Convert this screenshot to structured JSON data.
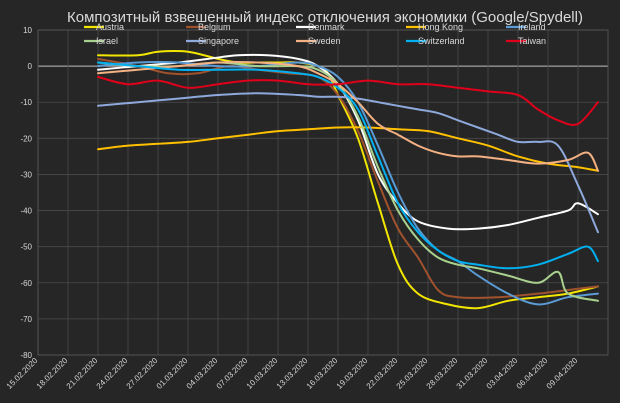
{
  "chart_data": {
    "type": "line",
    "title": "Композитный взвешенный индекс отключения экономики (Google/Spydell)",
    "xlabel": "",
    "ylabel": "",
    "ylim": [
      -80,
      10
    ],
    "yticks": [
      10,
      0,
      -10,
      -20,
      -30,
      -40,
      -50,
      -60,
      -70,
      -80
    ],
    "x_tick_labels": [
      "15.02.2020",
      "18.02.2020",
      "21.02.2020",
      "24.02.2020",
      "27.02.2020",
      "01.03.2020",
      "04.03.2020",
      "07.03.2020",
      "10.03.2020",
      "13.03.2020",
      "16.03.2020",
      "19.03.2020",
      "22.03.2020",
      "25.03.2020",
      "28.03.2020",
      "31.03.2020",
      "03.04.2020",
      "06.04.2020",
      "09.04.2020"
    ],
    "x_range_days": [
      0,
      57
    ],
    "x_units": "days after 15.02.2020",
    "grid": true,
    "legend_position": "top",
    "series": [
      {
        "name": "Austria",
        "color": "#f2e600",
        "x": [
          6,
          10,
          12,
          15,
          18,
          20,
          22,
          24,
          26,
          28,
          29,
          30,
          32,
          34,
          36,
          38,
          41,
          44,
          47,
          50,
          53,
          56
        ],
        "values": [
          3,
          3,
          4,
          4,
          2,
          1,
          1,
          1,
          1,
          0,
          -2,
          -8,
          -20,
          -38,
          -55,
          -63,
          -66,
          -67,
          -65,
          -64,
          -63,
          -61
        ]
      },
      {
        "name": "Belgium",
        "color": "#a0522d",
        "x": [
          6,
          10,
          13,
          16,
          19,
          22,
          25,
          28,
          30,
          32,
          34,
          36,
          38,
          40,
          42,
          46,
          50,
          53,
          56
        ],
        "values": [
          2,
          0,
          -2,
          -2,
          0,
          -1,
          -2,
          -3,
          -8,
          -18,
          -32,
          -45,
          -53,
          -62,
          -64,
          -64,
          -63,
          -62,
          -61
        ]
      },
      {
        "name": "Denmark",
        "color": "#ffffff",
        "x": [
          6,
          10,
          14,
          17,
          20,
          23,
          26,
          28,
          30,
          32,
          34,
          36,
          38,
          41,
          44,
          47,
          50,
          53,
          54,
          56
        ],
        "values": [
          -1,
          0,
          1,
          2,
          3,
          3,
          2,
          0,
          -5,
          -15,
          -30,
          -38,
          -43,
          -45,
          -45,
          -44,
          -42,
          -40,
          -38,
          -41
        ]
      },
      {
        "name": "Hong Kong",
        "color": "#ffc000",
        "x": [
          6,
          9,
          12,
          15,
          18,
          21,
          24,
          27,
          30,
          33,
          36,
          39,
          42,
          45,
          48,
          51,
          54,
          56
        ],
        "values": [
          -23,
          -22,
          -21.5,
          -21,
          -20,
          -19,
          -18,
          -17.5,
          -17,
          -17,
          -17.5,
          -18,
          -20,
          -22,
          -25,
          -27,
          -28,
          -29
        ]
      },
      {
        "name": "Ireland",
        "color": "#5b9bd5",
        "x": [
          6,
          10,
          14,
          18,
          22,
          26,
          28,
          30,
          32,
          34,
          36,
          38,
          40,
          42,
          44,
          47,
          50,
          53,
          56
        ],
        "values": [
          0,
          1,
          1,
          0,
          0,
          1,
          0,
          -3,
          -10,
          -22,
          -35,
          -45,
          -51,
          -54,
          -58,
          -63,
          -66,
          -64,
          -63
        ]
      },
      {
        "name": "Israel",
        "color": "#a9d18e",
        "x": [
          6,
          10,
          14,
          18,
          22,
          26,
          28,
          30,
          32,
          34,
          36,
          38,
          40,
          42,
          44,
          47,
          50,
          52,
          53,
          56
        ],
        "values": [
          1,
          0,
          0,
          1,
          0,
          0,
          -1,
          -5,
          -14,
          -28,
          -40,
          -48,
          -53,
          -55,
          -56,
          -58,
          -60,
          -57,
          -63,
          -65
        ]
      },
      {
        "name": "Singapore",
        "color": "#8ea9db",
        "x": [
          6,
          10,
          14,
          18,
          22,
          26,
          28,
          30,
          32,
          34,
          36,
          38,
          40,
          42,
          44,
          46,
          48,
          50,
          52,
          54,
          56
        ],
        "values": [
          -11,
          -10,
          -9,
          -8,
          -7.5,
          -8,
          -8.5,
          -8.5,
          -9,
          -10,
          -11,
          -12,
          -13,
          -15,
          -17,
          -19,
          -21,
          -21,
          -22,
          -33,
          -46
        ]
      },
      {
        "name": "Sweden",
        "color": "#f4b183",
        "x": [
          6,
          10,
          14,
          18,
          22,
          26,
          28,
          30,
          32,
          34,
          36,
          38,
          40,
          42,
          44,
          47,
          50,
          53,
          55,
          56
        ],
        "values": [
          -2,
          -1,
          0,
          1,
          1,
          0,
          -2,
          -5,
          -10,
          -16,
          -19,
          -22,
          -24,
          -25,
          -25,
          -26,
          -27,
          -26,
          -24,
          -29
        ]
      },
      {
        "name": "Switzerland",
        "color": "#00b0f0",
        "x": [
          6,
          10,
          14,
          18,
          22,
          26,
          28,
          30,
          32,
          34,
          36,
          38,
          40,
          42,
          44,
          47,
          50,
          53,
          55,
          56
        ],
        "values": [
          1,
          0,
          -1,
          -1,
          -1,
          -2,
          -3,
          -6,
          -12,
          -25,
          -38,
          -46,
          -51,
          -54,
          -55,
          -56,
          -55,
          -52,
          -50,
          -54
        ]
      },
      {
        "name": "Taiwan",
        "color": "#e0001a",
        "x": [
          6,
          9,
          12,
          15,
          18,
          21,
          24,
          27,
          30,
          33,
          36,
          39,
          42,
          45,
          48,
          50,
          52,
          54,
          56
        ],
        "values": [
          -3,
          -5,
          -4,
          -6,
          -5,
          -4,
          -4,
          -5,
          -5,
          -4,
          -5,
          -5,
          -6,
          -7,
          -8,
          -12,
          -15,
          -16,
          -10
        ]
      }
    ]
  }
}
